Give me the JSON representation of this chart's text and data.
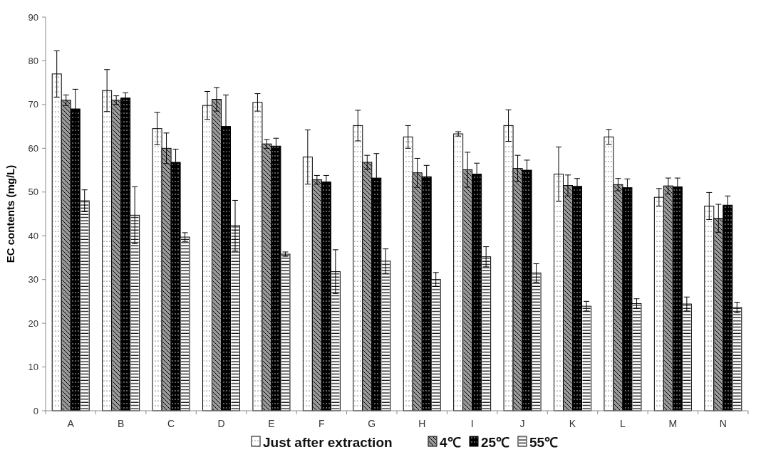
{
  "chart_data": {
    "type": "bar",
    "ylabel": "EC contents (mg/L)",
    "categories": [
      "A",
      "B",
      "C",
      "D",
      "E",
      "F",
      "G",
      "H",
      "I",
      "J",
      "K",
      "L",
      "M",
      "N"
    ],
    "ylim": [
      0,
      90
    ],
    "yticks": [
      0,
      10,
      20,
      30,
      40,
      50,
      60,
      70,
      80,
      90
    ],
    "grid": false,
    "legend": "bottom",
    "series": [
      {
        "name": "Just after extraction",
        "color": "#ffffff",
        "values": [
          77,
          73.2,
          64.5,
          69.8,
          70.5,
          58,
          65.2,
          62.6,
          63.3,
          65.2,
          54.1,
          62.6,
          48.8,
          46.8
        ],
        "errors": [
          5.3,
          4.8,
          3.7,
          3.2,
          2,
          6.2,
          3.5,
          2.6,
          0.5,
          3.6,
          6.2,
          1.7,
          2,
          3.1
        ]
      },
      {
        "name": "4℃",
        "color": "#9a9a9a",
        "values": [
          71,
          71,
          60,
          71.2,
          61,
          52.8,
          56.8,
          54.4,
          55.1,
          55.4,
          51.5,
          51.7,
          51.4,
          44
        ],
        "errors": [
          1.2,
          1,
          3.5,
          2.7,
          1,
          1,
          1.6,
          3.3,
          4,
          3,
          2.4,
          1.4,
          1.8,
          3.2
        ]
      },
      {
        "name": "25℃",
        "color": "#000000",
        "values": [
          69,
          71.5,
          56.8,
          65,
          60.5,
          52.3,
          53.2,
          53.5,
          54.1,
          55,
          51.3,
          51,
          51.2,
          47
        ],
        "errors": [
          4.5,
          1.2,
          3,
          7.2,
          1.8,
          1.5,
          5.6,
          2.6,
          2.5,
          2.3,
          1.8,
          2,
          2,
          2.1
        ]
      },
      {
        "name": "55℃",
        "color": "#fefefe",
        "values": [
          48,
          44.7,
          39.7,
          42.3,
          35.8,
          31.8,
          34.2,
          30,
          35.2,
          31.5,
          23.9,
          24.5,
          24.4,
          23.6
        ],
        "errors": [
          2.5,
          6.5,
          1,
          5.8,
          0.5,
          5,
          2.8,
          1.6,
          2.3,
          2.1,
          1.1,
          1.1,
          1.6,
          1.2
        ]
      }
    ]
  }
}
